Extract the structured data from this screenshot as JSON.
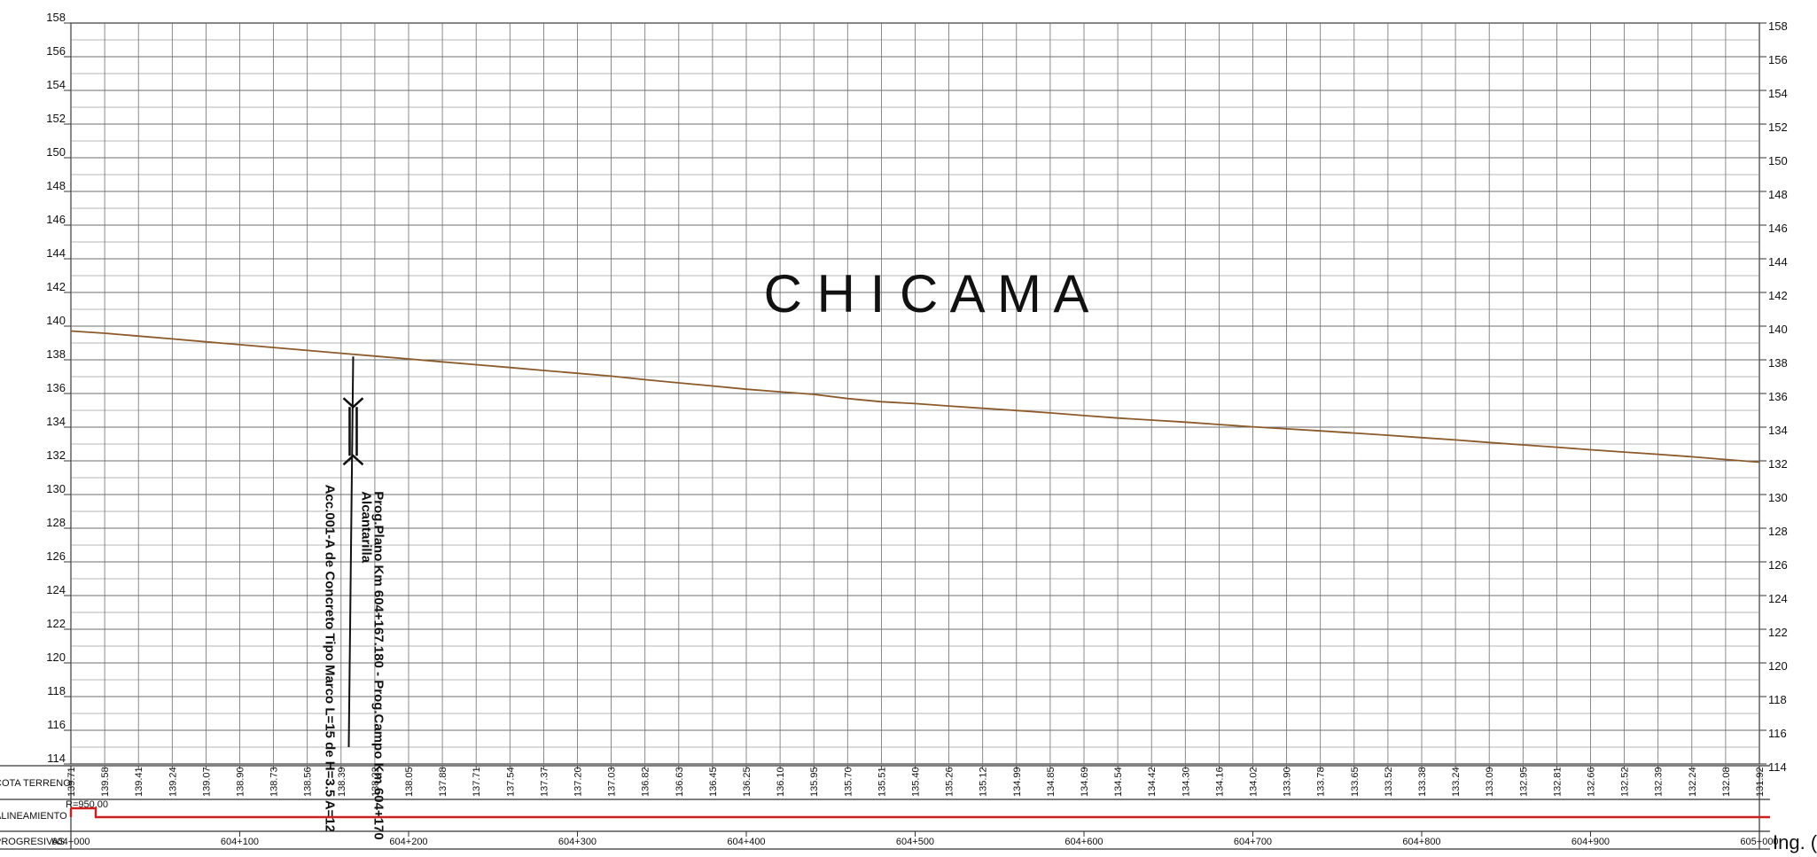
{
  "chart_data": {
    "type": "line",
    "title": "C H I C A M A",
    "y_ticks": [
      "158",
      "156",
      "154",
      "152",
      "150",
      "148",
      "146",
      "144",
      "142",
      "140",
      "138",
      "136",
      "134",
      "132",
      "130",
      "128",
      "126",
      "124",
      "122",
      "120",
      "118",
      "116",
      "114"
    ],
    "ylim": [
      114,
      158
    ],
    "xlim": [
      0,
      1000
    ],
    "x_labels": [
      {
        "x": 0,
        "label": "604+000"
      },
      {
        "x": 100,
        "label": "604+100"
      },
      {
        "x": 200,
        "label": "604+200"
      },
      {
        "x": 300,
        "label": "604+300"
      },
      {
        "x": 400,
        "label": "604+400"
      },
      {
        "x": 500,
        "label": "604+500"
      },
      {
        "x": 600,
        "label": "604+600"
      },
      {
        "x": 700,
        "label": "604+700"
      },
      {
        "x": 800,
        "label": "604+800"
      },
      {
        "x": 900,
        "label": "604+900"
      },
      {
        "x": 1000,
        "label": "605+000"
      }
    ],
    "terrain_labels": [
      "139.71",
      "139.58",
      "139.41",
      "139.24",
      "139.07",
      "138.90",
      "138.73",
      "138.56",
      "138.39",
      "138.22",
      "138.05",
      "137.88",
      "137.71",
      "137.54",
      "137.37",
      "137.20",
      "137.03",
      "136.82",
      "136.63",
      "136.45",
      "136.25",
      "136.10",
      "135.95",
      "135.70",
      "135.51",
      "135.40",
      "135.26",
      "135.12",
      "134.99",
      "134.85",
      "134.69",
      "134.54",
      "134.42",
      "134.30",
      "134.16",
      "134.02",
      "133.90",
      "133.78",
      "133.65",
      "133.52",
      "133.38",
      "133.24",
      "133.09",
      "132.95",
      "132.81",
      "132.66",
      "132.52",
      "132.39",
      "132.24",
      "132.08",
      "131.92"
    ],
    "series": [
      {
        "color": "#8b5a2b",
        "x": [
          0,
          20,
          40,
          60,
          80,
          100,
          120,
          140,
          160,
          180,
          200,
          220,
          240,
          260,
          280,
          300,
          320,
          340,
          360,
          380,
          400,
          420,
          440,
          460,
          480,
          500,
          520,
          540,
          560,
          580,
          600,
          620,
          640,
          660,
          680,
          700,
          720,
          740,
          760,
          780,
          800,
          820,
          840,
          860,
          880,
          900,
          920,
          940,
          960,
          980,
          1000
        ],
        "y": [
          139.71,
          139.58,
          139.41,
          139.24,
          139.07,
          138.9,
          138.73,
          138.56,
          138.39,
          138.22,
          138.05,
          137.88,
          137.71,
          137.54,
          137.37,
          137.2,
          137.03,
          136.82,
          136.63,
          136.45,
          136.25,
          136.1,
          135.95,
          135.7,
          135.51,
          135.4,
          135.26,
          135.12,
          134.99,
          134.85,
          134.69,
          134.54,
          134.42,
          134.3,
          134.16,
          134.02,
          133.9,
          133.78,
          133.65,
          133.52,
          133.38,
          133.24,
          133.09,
          132.95,
          132.81,
          132.66,
          132.52,
          132.39,
          132.24,
          132.08,
          131.92
        ]
      }
    ],
    "annotation": {
      "x": 167.18,
      "y_top": 138.2,
      "y_bottom": 115,
      "line1": "Prog.Plano Km 604+167.180 - Prog.Campo Km 604+170",
      "line2": "Alcantarilla",
      "line3": "Acc.001-A de Concreto Tipo Marco L=15 de H=3.5 A=12"
    },
    "band_rows": {
      "terrain": "COTA TERRENO",
      "alignment": "ALINEAMIENTO",
      "progressive": "PROGRESIVAS"
    },
    "alignment_label": "R=950.00",
    "grid": true,
    "corner_text": "Ing. ("
  }
}
